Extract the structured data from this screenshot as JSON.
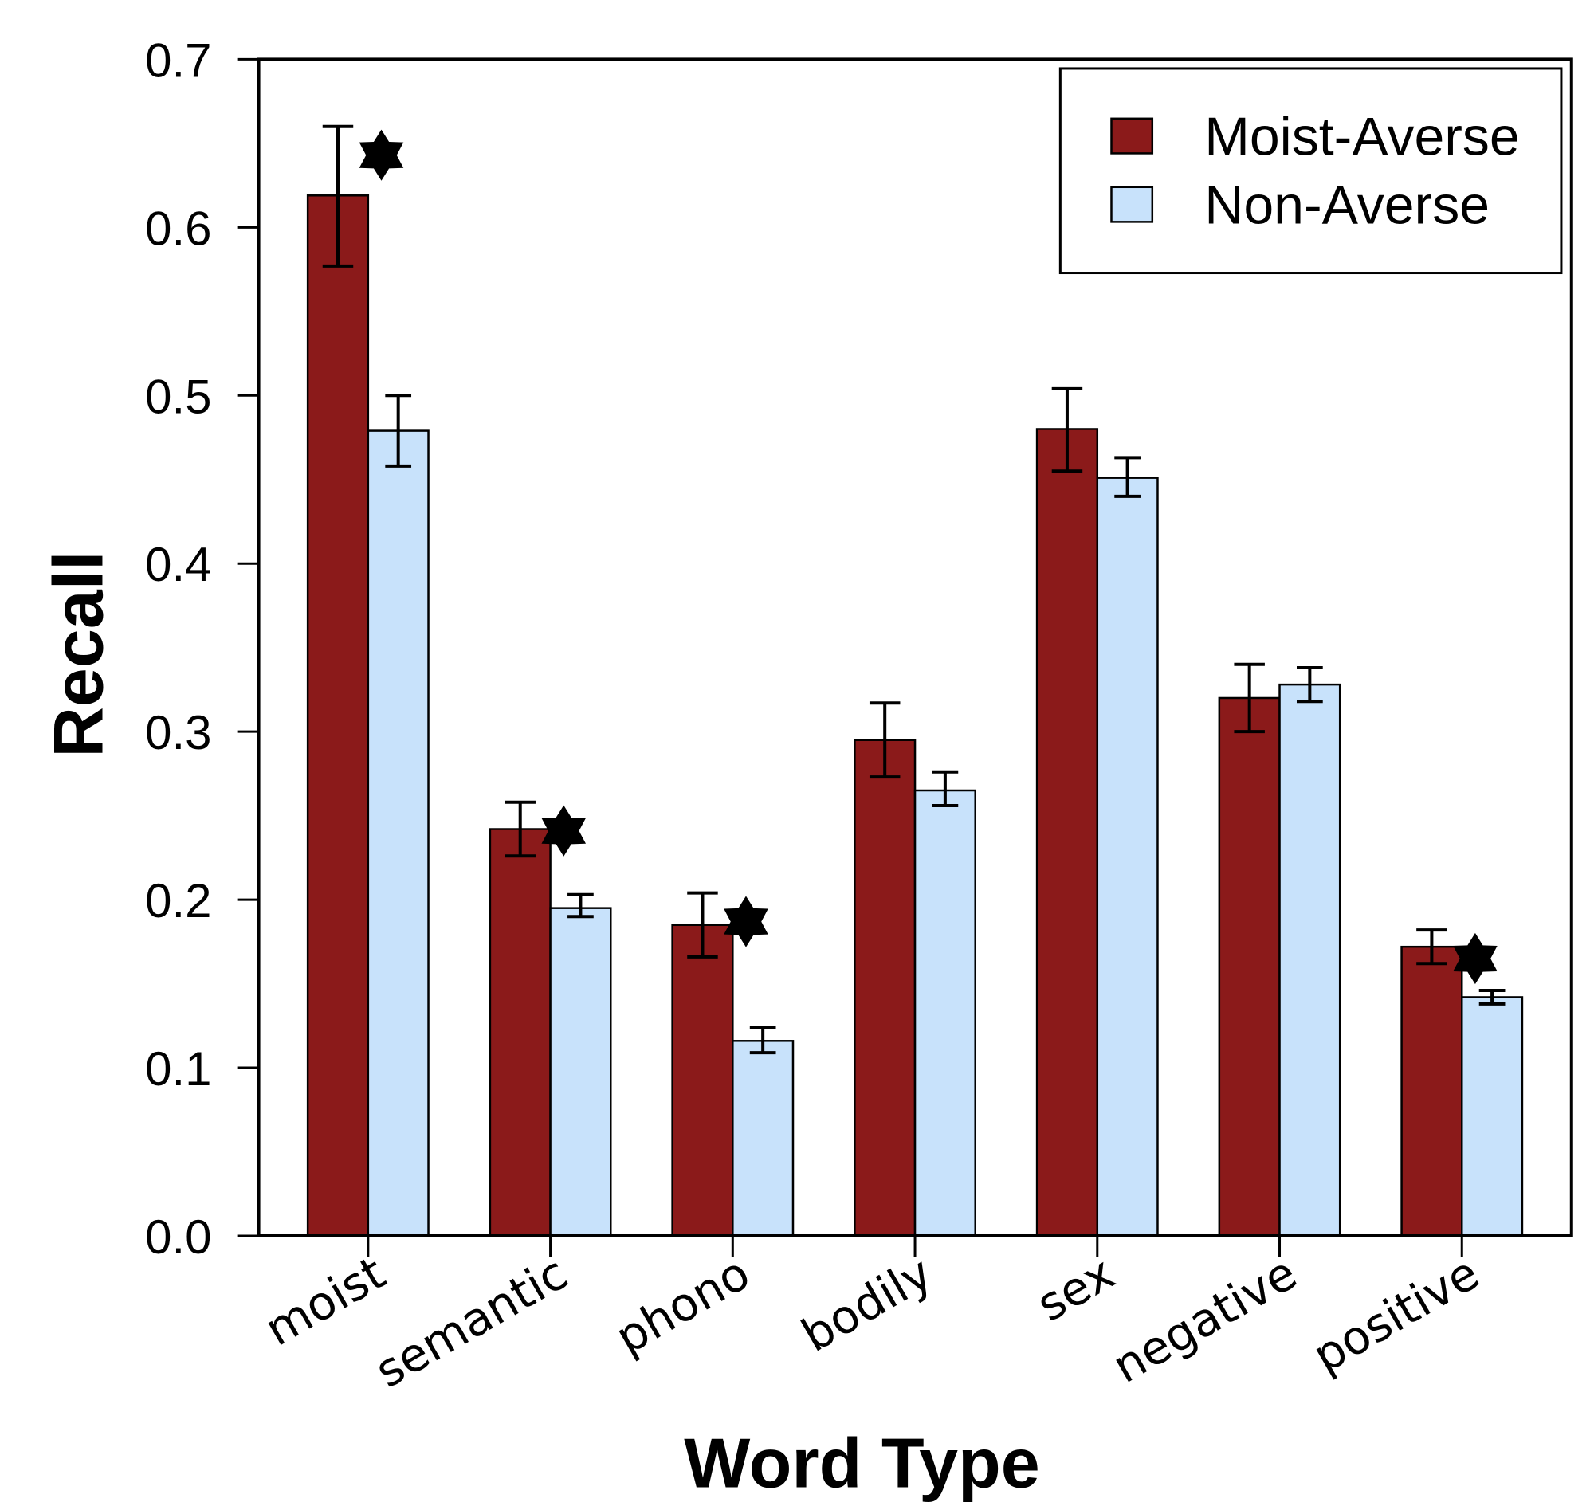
{
  "chart_data": {
    "type": "bar",
    "title": "",
    "xlabel": "Word Type",
    "ylabel": "Recall",
    "ylim": [
      0,
      0.7
    ],
    "yticks": [
      "0.0",
      "0.1",
      "0.2",
      "0.3",
      "0.4",
      "0.5",
      "0.6",
      "0.7"
    ],
    "categories": [
      "moist",
      "semantic",
      "phono",
      "bodily",
      "sex",
      "negative",
      "positive"
    ],
    "series": [
      {
        "name": "Moist-Averse",
        "color": "#8b1a1a",
        "values": [
          0.619,
          0.242,
          0.185,
          0.295,
          0.48,
          0.32,
          0.172
        ],
        "err_low": [
          0.577,
          0.226,
          0.166,
          0.273,
          0.455,
          0.3,
          0.162
        ],
        "err_high": [
          0.66,
          0.258,
          0.204,
          0.317,
          0.504,
          0.34,
          0.182
        ]
      },
      {
        "name": "Non-Averse",
        "color": "#c8e2fb",
        "values": [
          0.479,
          0.195,
          0.116,
          0.265,
          0.451,
          0.328,
          0.142
        ],
        "err_low": [
          0.458,
          0.19,
          0.109,
          0.256,
          0.44,
          0.318,
          0.138
        ],
        "err_high": [
          0.5,
          0.203,
          0.124,
          0.276,
          0.463,
          0.338,
          0.146
        ]
      }
    ],
    "significant": [
      true,
      true,
      true,
      false,
      false,
      false,
      true
    ],
    "significance_marker": "star",
    "legend_position": "top-right",
    "grid": false
  }
}
